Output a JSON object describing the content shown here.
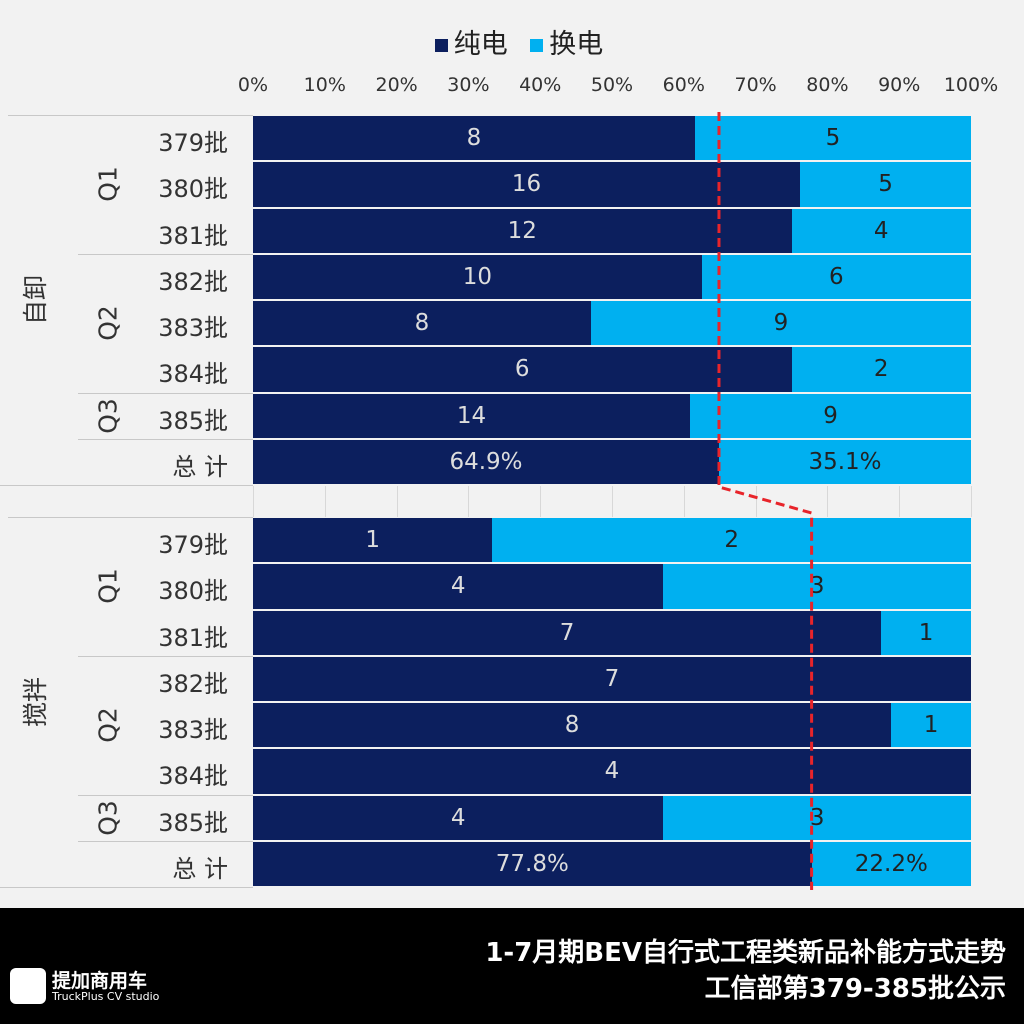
{
  "chart_data": {
    "type": "bar",
    "orientation": "horizontal",
    "stacked": "percent",
    "legend_position": "top",
    "series": [
      {
        "name": "纯电",
        "color": "#0c1f5e"
      },
      {
        "name": "换电",
        "color": "#00b0f0"
      }
    ],
    "x_ticks": [
      "0%",
      "10%",
      "20%",
      "30%",
      "40%",
      "50%",
      "60%",
      "70%",
      "80%",
      "90%",
      "100%"
    ],
    "xlim": [
      0,
      100
    ],
    "groups": [
      {
        "name": "自卸",
        "quarters": [
          {
            "name": "Q1",
            "rows": 3
          },
          {
            "name": "Q2",
            "rows": 3
          },
          {
            "name": "Q3",
            "rows": 1
          }
        ],
        "categories": [
          "379批",
          "380批",
          "381批",
          "382批",
          "383批",
          "384批",
          "385批"
        ],
        "values": [
          [
            8,
            5
          ],
          [
            16,
            5
          ],
          [
            12,
            4
          ],
          [
            10,
            6
          ],
          [
            8,
            9
          ],
          [
            6,
            2
          ],
          [
            14,
            9
          ]
        ],
        "total": {
          "label": "总 计",
          "values": [
            "64.9%",
            "35.1%"
          ],
          "pct": [
            64.9,
            35.1
          ]
        }
      },
      {
        "name": "搅拌",
        "quarters": [
          {
            "name": "Q1",
            "rows": 3
          },
          {
            "name": "Q2",
            "rows": 3
          },
          {
            "name": "Q3",
            "rows": 1
          }
        ],
        "categories": [
          "379批",
          "380批",
          "381批",
          "382批",
          "383批",
          "384批",
          "385批"
        ],
        "values": [
          [
            1,
            2
          ],
          [
            4,
            3
          ],
          [
            7,
            1
          ],
          [
            7,
            0
          ],
          [
            8,
            1
          ],
          [
            4,
            0
          ],
          [
            4,
            3
          ]
        ],
        "total": {
          "label": "总 计",
          "values": [
            "77.8%",
            "22.2%"
          ],
          "pct": [
            77.8,
            22.2
          ]
        }
      }
    ],
    "trend_line_color": "#e8242a"
  },
  "footer": {
    "title": "1-7月期BEV自行式工程类新品补能方式走势",
    "subtitle": "工信部第379-385批公示",
    "logo_cn": "提加商用车",
    "logo_en": "TruckPlus CV studio"
  }
}
